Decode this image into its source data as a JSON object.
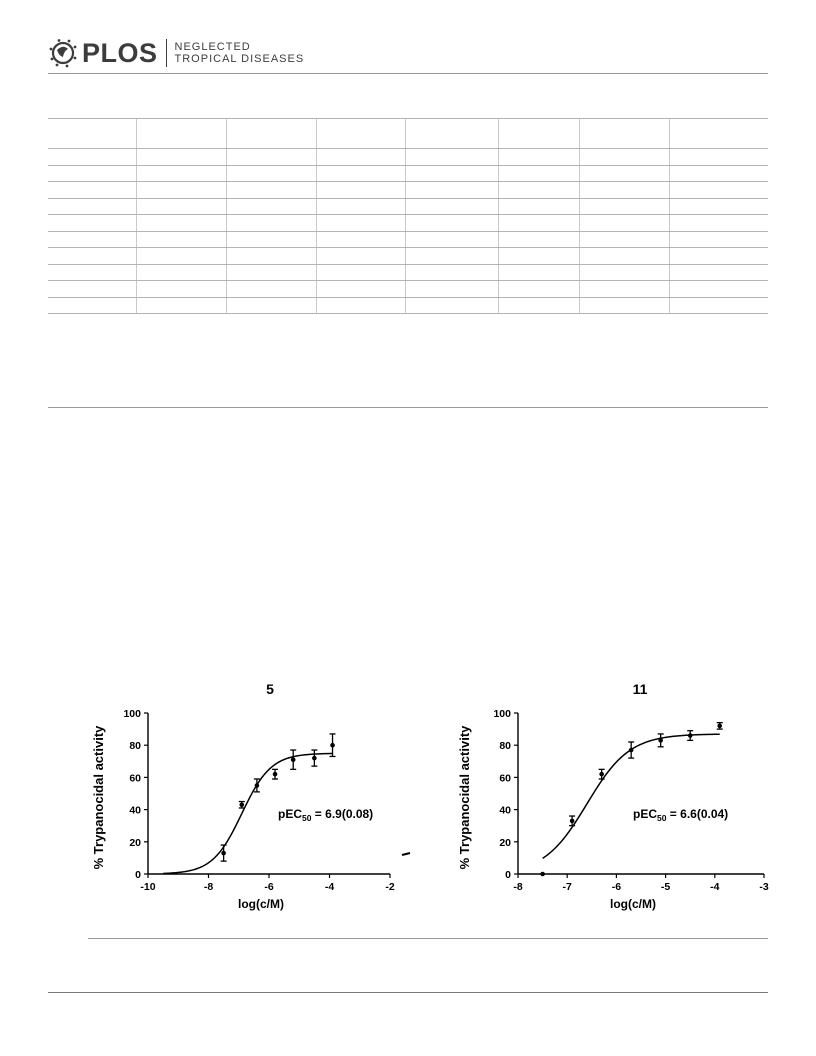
{
  "header": {
    "publisher": "PLOS",
    "journal_line1": "NEGLECTED",
    "journal_line2": "TROPICAL DISEASES"
  },
  "chart_data": [
    {
      "type": "scatter",
      "title": "5",
      "xlabel": "log(c/M)",
      "ylabel": "% Trypanocidal activity",
      "xlim": [
        -10,
        -2
      ],
      "ylim": [
        0,
        100
      ],
      "xticks": [
        "-10",
        "-8",
        "-6",
        "-4",
        "-2"
      ],
      "yticks": [
        "0",
        "20",
        "40",
        "60",
        "80",
        "100"
      ],
      "annotation": "pEC",
      "annotation_sub": "50",
      "annotation_rest": " = 6.9(0.08)",
      "points": [
        {
          "x": -7.5,
          "y": 13,
          "err": 5
        },
        {
          "x": -6.9,
          "y": 43,
          "err": 2
        },
        {
          "x": -6.4,
          "y": 55,
          "err": 4
        },
        {
          "x": -5.8,
          "y": 62,
          "err": 3
        },
        {
          "x": -5.2,
          "y": 71,
          "err": 6
        },
        {
          "x": -4.5,
          "y": 72,
          "err": 5
        },
        {
          "x": -3.9,
          "y": 80,
          "err": 7
        }
      ],
      "fit": {
        "bottom": 0,
        "top": 75,
        "logEC50": -6.9,
        "hill": 0.9,
        "x_start": -9.5,
        "x_end": -3.9
      }
    },
    {
      "type": "scatter",
      "title": "11",
      "xlabel": "log(c/M)",
      "ylabel": "% Trypanocidal activity",
      "xlim": [
        -8,
        -3
      ],
      "ylim": [
        0,
        100
      ],
      "xticks": [
        "-8",
        "-7",
        "-6",
        "-5",
        "-4",
        "-3"
      ],
      "yticks": [
        "0",
        "20",
        "40",
        "60",
        "80",
        "100"
      ],
      "annotation": "pEC",
      "annotation_sub": "50",
      "annotation_rest": " = 6.6(0.04)",
      "points": [
        {
          "x": -7.5,
          "y": 0,
          "err": 0
        },
        {
          "x": -6.9,
          "y": 33,
          "err": 3
        },
        {
          "x": -6.3,
          "y": 62,
          "err": 3
        },
        {
          "x": -5.7,
          "y": 77,
          "err": 5
        },
        {
          "x": -5.1,
          "y": 83,
          "err": 4
        },
        {
          "x": -4.5,
          "y": 86,
          "err": 3
        },
        {
          "x": -3.9,
          "y": 92,
          "err": 2
        }
      ],
      "fit": {
        "bottom": 0,
        "top": 87,
        "logEC50": -6.6,
        "hill": 1.0,
        "x_start": -7.5,
        "x_end": -3.9
      }
    }
  ]
}
